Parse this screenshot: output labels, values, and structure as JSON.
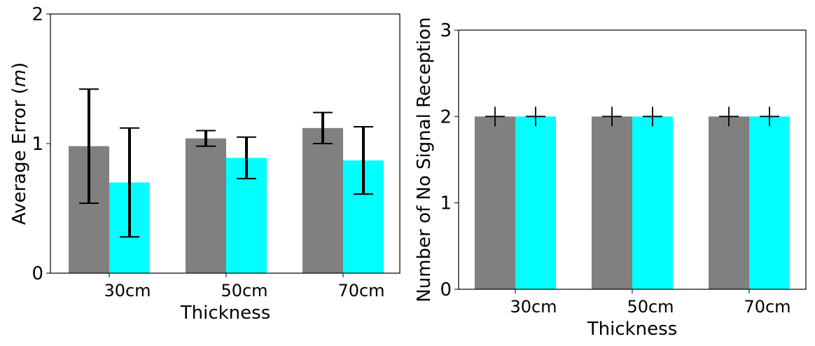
{
  "chart_data": [
    {
      "type": "bar",
      "title": "",
      "xlabel": "Thickness",
      "ylabel": "Average Error (m)",
      "ylabel_prefix": "Average Error (",
      "ylabel_unit": "m",
      "ylabel_suffix": ")",
      "ylim": [
        0,
        2
      ],
      "yticks": [
        "0",
        "1",
        "2"
      ],
      "categories": [
        "30cm",
        "50cm",
        "70cm"
      ],
      "series": [
        {
          "color": "#808080",
          "values": [
            0.98,
            1.04,
            1.12
          ],
          "err": [
            0.44,
            0.06,
            0.12
          ]
        },
        {
          "color": "#00ffff",
          "values": [
            0.7,
            0.89,
            0.87
          ],
          "err": [
            0.42,
            0.16,
            0.26
          ]
        }
      ],
      "grid": false,
      "legend": "none"
    },
    {
      "type": "bar",
      "title": "",
      "xlabel": "Thickness",
      "ylabel": "Number of No Signal Reception",
      "ylim": [
        0,
        3
      ],
      "yticks": [
        "0",
        "1",
        "2",
        "3"
      ],
      "categories": [
        "30cm",
        "50cm",
        "70cm"
      ],
      "series": [
        {
          "color": "#808080",
          "values": [
            2,
            2,
            2
          ],
          "marker": "+"
        },
        {
          "color": "#00ffff",
          "values": [
            2,
            2,
            2
          ],
          "marker": "+"
        }
      ],
      "grid": false,
      "legend": "none"
    }
  ]
}
